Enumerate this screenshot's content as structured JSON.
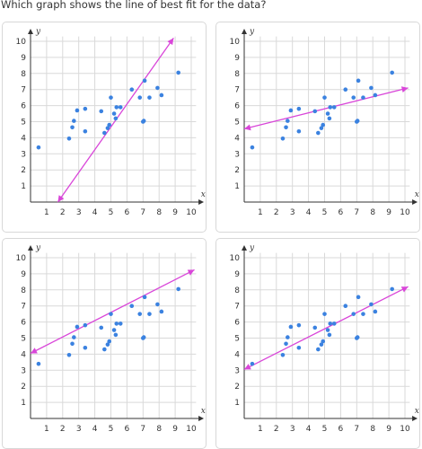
{
  "question": "Which graph shows the line of best fit for the data?",
  "axes": {
    "x_label": "x",
    "y_label": "y",
    "ticks": [
      "1",
      "2",
      "3",
      "4",
      "5",
      "6",
      "7",
      "8",
      "9",
      "10"
    ]
  },
  "colors": {
    "points": "#3b82e0",
    "line": "#d946d9",
    "grid": "#d9d9d9",
    "axis": "#333333"
  },
  "scatter_points": [
    [
      0.5,
      3.4
    ],
    [
      2.4,
      3.95
    ],
    [
      2.6,
      4.65
    ],
    [
      2.7,
      5.05
    ],
    [
      2.9,
      5.7
    ],
    [
      3.4,
      5.8
    ],
    [
      3.4,
      4.4
    ],
    [
      4.4,
      5.65
    ],
    [
      4.6,
      4.3
    ],
    [
      4.8,
      4.6
    ],
    [
      4.9,
      4.8
    ],
    [
      5.0,
      6.5
    ],
    [
      5.2,
      5.5
    ],
    [
      5.3,
      5.2
    ],
    [
      5.35,
      5.9
    ],
    [
      5.6,
      5.9
    ],
    [
      6.3,
      7.0
    ],
    [
      6.8,
      6.5
    ],
    [
      7.0,
      5.0
    ],
    [
      7.05,
      5.05
    ],
    [
      7.1,
      7.55
    ],
    [
      7.4,
      6.5
    ],
    [
      7.9,
      7.1
    ],
    [
      8.15,
      6.65
    ],
    [
      9.2,
      8.05
    ]
  ],
  "options": [
    {
      "line": [
        [
          1.7,
          0
        ],
        [
          8.9,
          10.2
        ]
      ]
    },
    {
      "line": [
        [
          0,
          4.55
        ],
        [
          10.2,
          7.1
        ]
      ]
    },
    {
      "line": [
        [
          0,
          4.05
        ],
        [
          10.2,
          9.25
        ]
      ]
    },
    {
      "line": [
        [
          0,
          3.05
        ],
        [
          10.2,
          8.2
        ]
      ]
    }
  ]
}
